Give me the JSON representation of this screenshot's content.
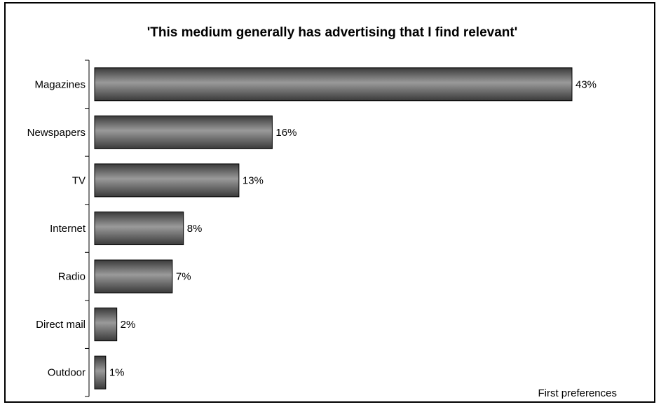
{
  "chart_data": {
    "type": "bar",
    "orientation": "horizontal",
    "title": "'This medium generally has advertising that I find relevant'",
    "categories": [
      "Magazines",
      "Newspapers",
      "TV",
      "Internet",
      "Radio",
      "Direct mail",
      "Outdoor"
    ],
    "values": [
      43,
      16,
      13,
      8,
      7,
      2,
      1
    ],
    "value_labels": [
      "43%",
      "16%",
      "13%",
      "8%",
      "7%",
      "2%",
      "1%"
    ],
    "xlim": [
      0,
      43
    ],
    "grid": false,
    "legend": "none",
    "annotation": "First preferences",
    "colors": {
      "bar_dark": "#3a3a3a",
      "bar_light": "#9a9a9a",
      "bar_outline": "#000000"
    }
  }
}
